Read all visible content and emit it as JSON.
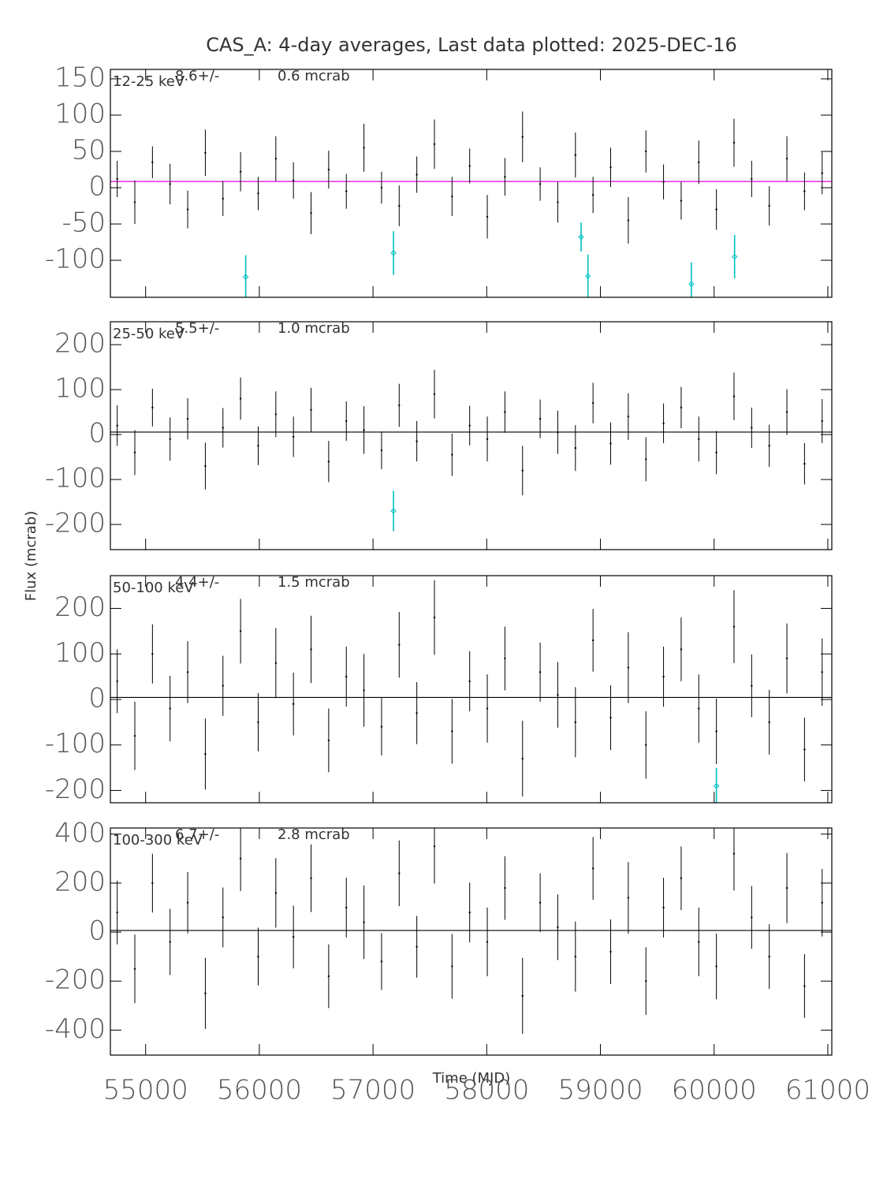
{
  "title": "CAS_A:  4-day averages,  Last data plotted: 2025-DEC-16",
  "x_label": "Time (MJD)",
  "y_label": "Flux (mcrab)",
  "chart_data": [
    {
      "type": "errorbar",
      "band": "12-25 keV",
      "mean": 8.6,
      "mean_label": "8.6+/-",
      "mean_error": 0.6,
      "mean_error_label": "0.6 mcrab",
      "mean_color": "#e000e0",
      "xlim": [
        54690,
        61035
      ],
      "xticks": [
        55000,
        56000,
        57000,
        58000,
        59000,
        60000,
        61000
      ],
      "ylim": [
        -151,
        163
      ],
      "yticks": [
        150,
        100,
        50,
        0,
        -50,
        -100
      ],
      "series": [
        {
          "color": "#000000",
          "marker": "dot",
          "x": [
            54750,
            54905,
            55060,
            55215,
            55370,
            55525,
            55680,
            55835,
            55990,
            56145,
            56300,
            56455,
            56610,
            56765,
            56920,
            57075,
            57230,
            57385,
            57540,
            57695,
            57850,
            58005,
            58160,
            58315,
            58470,
            58625,
            58780,
            58935,
            59090,
            59245,
            59400,
            59555,
            59710,
            59865,
            60020,
            60175,
            60330,
            60485,
            60640,
            60795,
            60950
          ],
          "values": [
            12,
            -20,
            35,
            5,
            -30,
            48,
            -15,
            22,
            -8,
            40,
            10,
            -35,
            25,
            -5,
            55,
            0,
            -25,
            18,
            60,
            -12,
            30,
            -40,
            15,
            70,
            5,
            -20,
            45,
            -10,
            28,
            -45,
            50,
            8,
            -18,
            35,
            -30,
            62,
            12,
            -25,
            40,
            -5,
            20
          ],
          "errors": [
            25,
            30,
            22,
            28,
            26,
            32,
            24,
            27,
            23,
            31,
            25,
            29,
            26,
            24,
            33,
            22,
            28,
            25,
            34,
            27,
            24,
            30,
            26,
            35,
            23,
            28,
            31,
            25,
            27,
            32,
            29,
            24,
            26,
            30,
            28,
            33,
            25,
            27,
            31,
            26,
            29
          ]
        },
        {
          "color": "#00c0c0",
          "marker": "diamond",
          "x": [
            55880,
            57180,
            58830,
            58890,
            59800,
            60180
          ],
          "values": [
            -123,
            -90,
            -68,
            -122,
            -133,
            -95
          ],
          "errors": [
            30,
            30,
            20,
            30,
            30,
            30
          ]
        }
      ]
    },
    {
      "type": "errorbar",
      "band": "25-50 keV",
      "mean": 5.5,
      "mean_label": "5.5+/-",
      "mean_error": 1.0,
      "mean_error_label": "1.0 mcrab",
      "mean_color": "#000000",
      "xlim": [
        54690,
        61035
      ],
      "xticks": [
        55000,
        56000,
        57000,
        58000,
        59000,
        60000,
        61000
      ],
      "ylim": [
        -256,
        251
      ],
      "yticks": [
        200,
        100,
        0,
        -100,
        -200
      ],
      "series": [
        {
          "color": "#000000",
          "marker": "dot",
          "x": [
            54750,
            54905,
            55060,
            55215,
            55370,
            55525,
            55680,
            55835,
            55990,
            56145,
            56300,
            56455,
            56610,
            56765,
            56920,
            57075,
            57230,
            57385,
            57540,
            57695,
            57850,
            58005,
            58160,
            58315,
            58470,
            58625,
            58780,
            58935,
            59090,
            59245,
            59400,
            59555,
            59710,
            59865,
            60020,
            60175,
            60330,
            60485,
            60640,
            60795,
            60950
          ],
          "values": [
            20,
            -40,
            60,
            -10,
            35,
            -70,
            15,
            80,
            -25,
            45,
            -5,
            55,
            -60,
            30,
            10,
            -35,
            65,
            -15,
            90,
            -45,
            20,
            -10,
            50,
            -80,
            35,
            5,
            -30,
            70,
            -20,
            40,
            -55,
            25,
            60,
            -10,
            -40,
            85,
            15,
            -25,
            50,
            -65,
            30
          ],
          "errors": [
            45,
            50,
            42,
            48,
            46,
            52,
            44,
            47,
            43,
            51,
            45,
            49,
            46,
            44,
            53,
            42,
            48,
            45,
            54,
            47,
            44,
            50,
            46,
            55,
            43,
            48,
            51,
            45,
            47,
            52,
            49,
            44,
            46,
            50,
            48,
            53,
            45,
            47,
            51,
            46,
            49
          ]
        },
        {
          "color": "#00c0c0",
          "marker": "diamond",
          "x": [
            57180
          ],
          "values": [
            -170
          ],
          "errors": [
            45
          ]
        }
      ]
    },
    {
      "type": "errorbar",
      "band": "50-100 keV",
      "mean": 4.4,
      "mean_label": "4.4+/-",
      "mean_error": 1.5,
      "mean_error_label": "1.5 mcrab",
      "mean_color": "#000000",
      "xlim": [
        54690,
        61035
      ],
      "xticks": [
        55000,
        56000,
        57000,
        58000,
        59000,
        60000,
        61000
      ],
      "ylim": [
        -227,
        272
      ],
      "yticks": [
        200,
        100,
        0,
        -100,
        -200
      ],
      "series": [
        {
          "color": "#000000",
          "marker": "dot",
          "x": [
            54750,
            54905,
            55060,
            55215,
            55370,
            55525,
            55680,
            55835,
            55990,
            56145,
            56300,
            56455,
            56610,
            56765,
            56920,
            57075,
            57230,
            57385,
            57540,
            57695,
            57850,
            58005,
            58160,
            58315,
            58470,
            58625,
            58780,
            58935,
            59090,
            59245,
            59400,
            59555,
            59710,
            59865,
            60020,
            60175,
            60330,
            60485,
            60640,
            60795,
            60950
          ],
          "values": [
            40,
            -80,
            100,
            -20,
            60,
            -120,
            30,
            150,
            -50,
            80,
            -10,
            110,
            -90,
            50,
            20,
            -60,
            120,
            -30,
            180,
            -70,
            40,
            -20,
            90,
            -130,
            60,
            10,
            -50,
            130,
            -40,
            70,
            -100,
            50,
            110,
            -20,
            -70,
            160,
            30,
            -50,
            90,
            -110,
            60
          ],
          "errors": [
            70,
            75,
            65,
            72,
            68,
            78,
            66,
            71,
            64,
            77,
            69,
            74,
            70,
            66,
            80,
            63,
            72,
            68,
            82,
            71,
            66,
            75,
            70,
            83,
            65,
            72,
            77,
            69,
            71,
            78,
            74,
            66,
            70,
            75,
            72,
            80,
            69,
            71,
            77,
            70,
            74
          ]
        },
        {
          "color": "#00c0c0",
          "marker": "diamond",
          "x": [
            60020
          ],
          "values": [
            -190
          ],
          "errors": [
            40
          ]
        }
      ]
    },
    {
      "type": "errorbar",
      "band": "100-300 keV",
      "mean": 6.7,
      "mean_label": "6.7+/-",
      "mean_error": 2.8,
      "mean_error_label": "2.8 mcrab",
      "mean_color": "#000000",
      "xlim": [
        54690,
        61035
      ],
      "xticks": [
        55000,
        56000,
        57000,
        58000,
        59000,
        60000,
        61000
      ],
      "ylim": [
        -502,
        425
      ],
      "yticks": [
        400,
        200,
        0,
        -200,
        -400
      ],
      "series": [
        {
          "color": "#000000",
          "marker": "dot",
          "x": [
            54750,
            54905,
            55060,
            55215,
            55370,
            55525,
            55680,
            55835,
            55990,
            56145,
            56300,
            56455,
            56610,
            56765,
            56920,
            57075,
            57230,
            57385,
            57540,
            57695,
            57850,
            58005,
            58160,
            58315,
            58470,
            58625,
            58780,
            58935,
            59090,
            59245,
            59400,
            59555,
            59710,
            59865,
            60020,
            60175,
            60330,
            60485,
            60640,
            60795,
            60950
          ],
          "values": [
            80,
            -150,
            200,
            -40,
            120,
            -250,
            60,
            300,
            -100,
            160,
            -20,
            220,
            -180,
            100,
            40,
            -120,
            240,
            -60,
            350,
            -140,
            80,
            -40,
            180,
            -260,
            120,
            20,
            -100,
            260,
            -80,
            140,
            -200,
            100,
            220,
            -40,
            -140,
            320,
            60,
            -100,
            180,
            -220,
            120
          ],
          "errors": [
            130,
            140,
            120,
            135,
            125,
            145,
            122,
            132,
            118,
            142,
            128,
            138,
            130,
            122,
            150,
            116,
            134,
            126,
            152,
            132,
            122,
            140,
            130,
            155,
            120,
            134,
            143,
            128,
            132,
            146,
            138,
            122,
            130,
            140,
            134,
            150,
            128,
            132,
            143,
            130,
            138
          ]
        }
      ]
    }
  ]
}
